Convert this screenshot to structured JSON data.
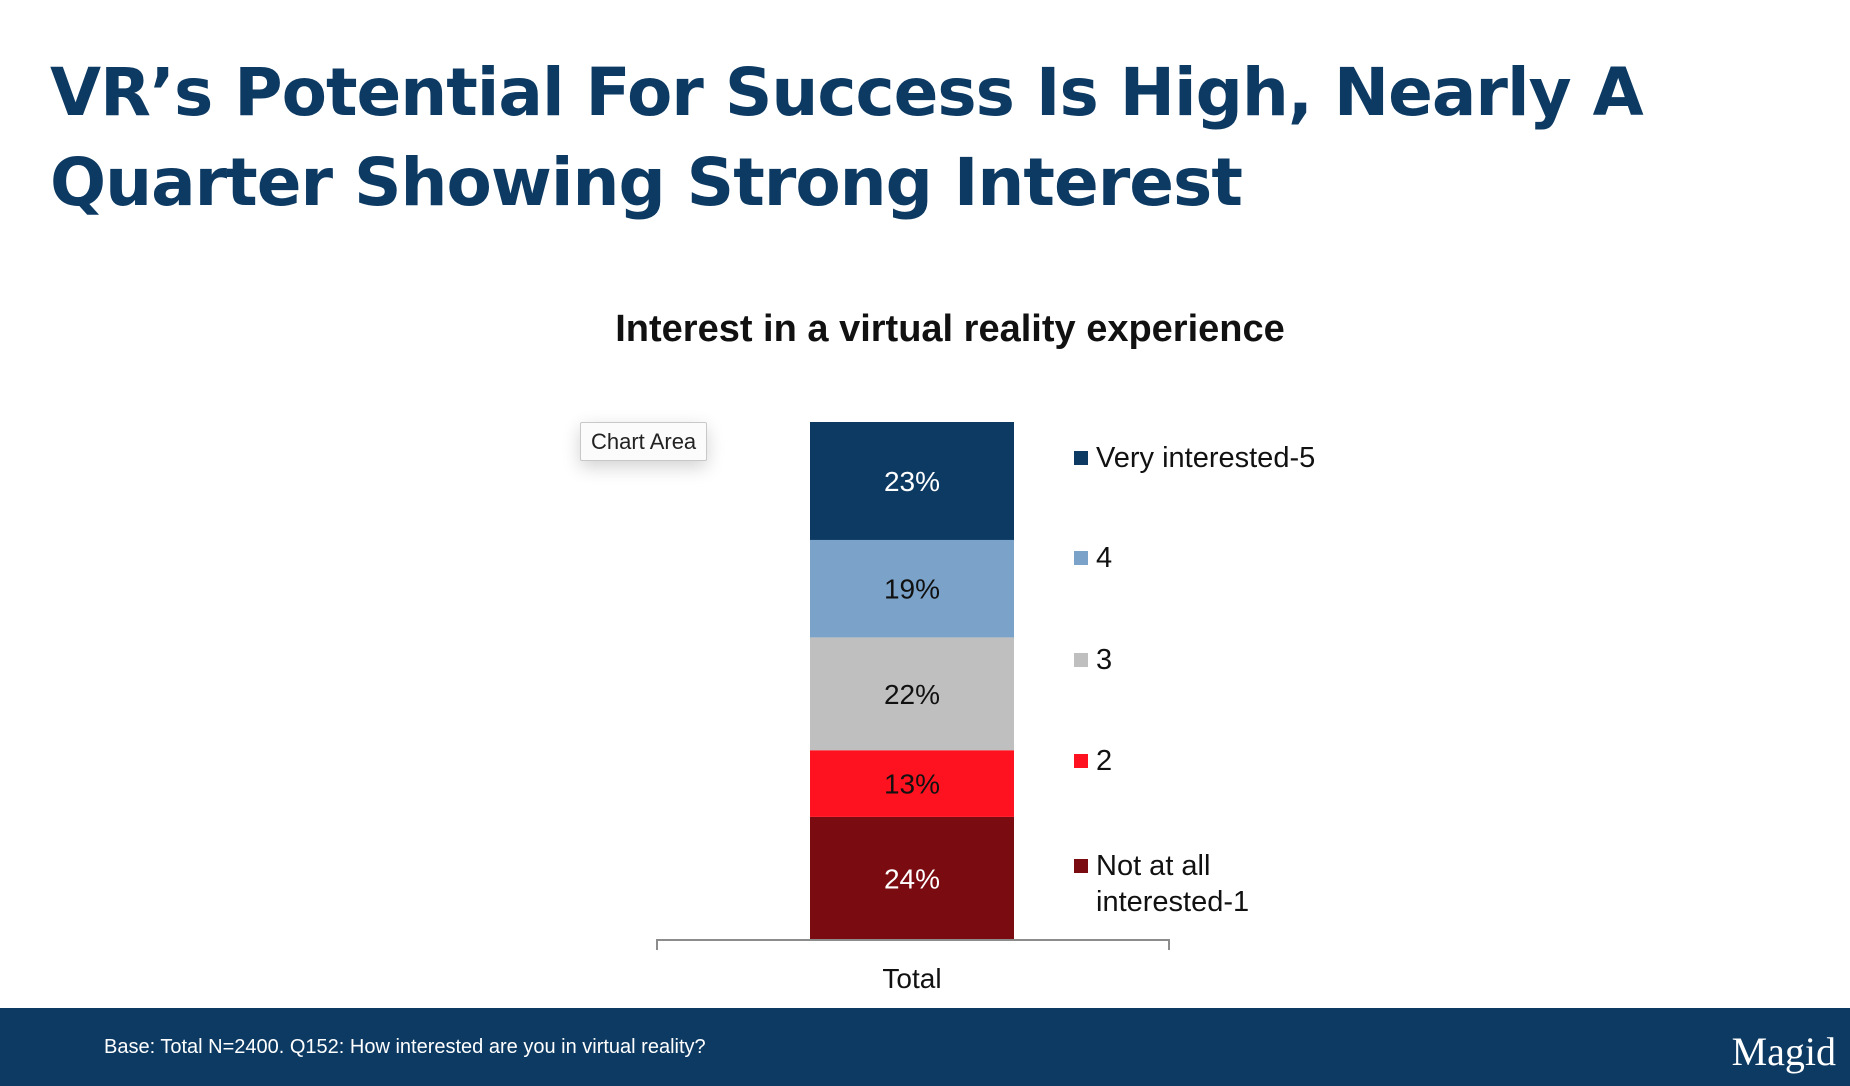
{
  "slide": {
    "title": "VR’s Potential For Success Is High, Nearly A Quarter Showing Strong Interest"
  },
  "tooltip": {
    "label": "Chart Area"
  },
  "chart_data": {
    "type": "bar",
    "stacked": true,
    "title": "Interest in a virtual reality experience",
    "categories": [
      "Total"
    ],
    "value_format": "percent",
    "ylim": [
      0,
      101
    ],
    "series": [
      {
        "name": "Not at all interested-1",
        "values": [
          24
        ],
        "color": "#7a0b10",
        "label_color": "#ffffff"
      },
      {
        "name": "2",
        "values": [
          13
        ],
        "color": "#ff1220",
        "label_color": "#111111"
      },
      {
        "name": "3",
        "values": [
          22
        ],
        "color": "#bfbfbf",
        "label_color": "#111111"
      },
      {
        "name": "4",
        "values": [
          19
        ],
        "color": "#7ba3c9",
        "label_color": "#111111"
      },
      {
        "name": "Very interested-5",
        "values": [
          23
        ],
        "color": "#0d3a63",
        "label_color": "#ffffff"
      }
    ],
    "data_labels": [
      "24%",
      "13%",
      "22%",
      "19%",
      "23%"
    ],
    "legend": {
      "position": "right",
      "entries": [
        "Very interested-5",
        "4",
        "3",
        "2",
        "Not at all interested-1"
      ]
    },
    "grid": false
  },
  "footer": {
    "note": "Base: Total N=2400. Q152: How interested are you in virtual reality?",
    "logo": "Magid"
  },
  "colors": {
    "brand_navy": "#0d3a63",
    "footer_bg": "#0d3a63"
  }
}
